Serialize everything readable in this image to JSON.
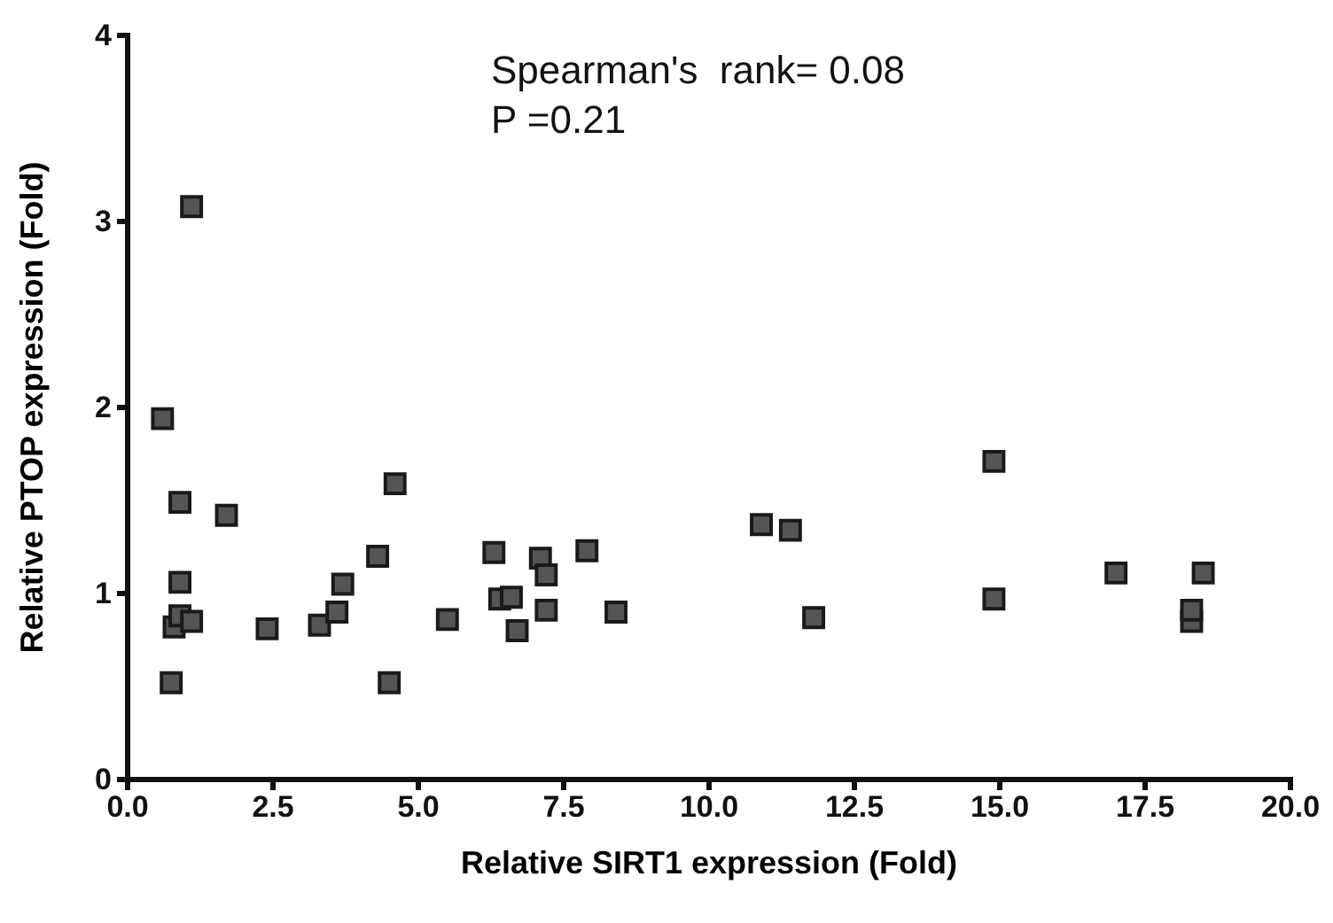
{
  "chart_data": {
    "type": "scatter",
    "xlabel": "Relative SIRT1 expression (Fold)",
    "ylabel": "Relative PTOP expression (Fold)",
    "annotations": [
      "Spearman's  rank= 0.08",
      "P =0.21"
    ],
    "xlim": [
      0,
      20
    ],
    "ylim": [
      0,
      4
    ],
    "xticks": [
      {
        "value": 0,
        "label": "0.0"
      },
      {
        "value": 2.5,
        "label": "2.5"
      },
      {
        "value": 5,
        "label": "5.0"
      },
      {
        "value": 7.5,
        "label": "7.5"
      },
      {
        "value": 10,
        "label": "10.0"
      },
      {
        "value": 12.5,
        "label": "12.5"
      },
      {
        "value": 15,
        "label": "15.0"
      },
      {
        "value": 17.5,
        "label": "17.5"
      },
      {
        "value": 20,
        "label": "20.0"
      }
    ],
    "yticks": [
      0,
      1,
      2,
      3,
      4
    ],
    "grid": false,
    "marker": "square",
    "series": [
      {
        "color": "#555555",
        "x": [
          0.6,
          1.1,
          0.9,
          1.7,
          0.9,
          0.8,
          0.9,
          1.1,
          0.75,
          2.4,
          3.3,
          3.6,
          3.7,
          4.3,
          4.6,
          4.5,
          5.5,
          6.3,
          6.4,
          6.6,
          6.7,
          7.1,
          7.2,
          7.2,
          7.9,
          8.4,
          10.9,
          11.4,
          11.8,
          14.9,
          14.9,
          17.0,
          18.5,
          18.3,
          18.3
        ],
        "values": [
          1.94,
          3.08,
          1.49,
          1.42,
          1.06,
          0.82,
          0.88,
          0.85,
          0.52,
          0.81,
          0.83,
          0.9,
          1.05,
          1.2,
          1.59,
          0.52,
          0.86,
          1.22,
          0.97,
          0.98,
          0.8,
          1.19,
          1.1,
          0.91,
          1.23,
          0.9,
          1.37,
          1.34,
          0.87,
          1.71,
          0.97,
          1.11,
          1.11,
          0.85,
          0.91
        ]
      }
    ]
  }
}
